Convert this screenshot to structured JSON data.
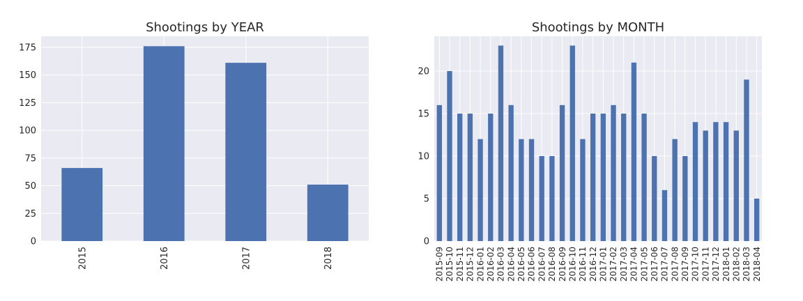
{
  "chart_data": [
    {
      "type": "bar",
      "title": "Shootings by YEAR",
      "xlabel": "",
      "ylabel": "",
      "categories": [
        "2015",
        "2016",
        "2017",
        "2018"
      ],
      "values": [
        66,
        176,
        161,
        51
      ],
      "ylim": [
        0,
        185
      ],
      "yticks": [
        0,
        25,
        50,
        75,
        100,
        125,
        150,
        175
      ],
      "grid": true,
      "bar_color": "#4c72b0"
    },
    {
      "type": "bar",
      "title": "Shootings by MONTH",
      "xlabel": "",
      "ylabel": "",
      "categories": [
        "2015-09",
        "2015-10",
        "2015-11",
        "2015-12",
        "2016-01",
        "2016-02",
        "2016-03",
        "2016-04",
        "2016-05",
        "2016-06",
        "2016-07",
        "2016-08",
        "2016-09",
        "2016-10",
        "2016-11",
        "2016-12",
        "2017-01",
        "2017-02",
        "2017-03",
        "2017-04",
        "2017-05",
        "2017-06",
        "2017-07",
        "2017-08",
        "2017-09",
        "2017-10",
        "2017-11",
        "2017-12",
        "2018-01",
        "2018-02",
        "2018-03",
        "2018-04"
      ],
      "values": [
        16,
        20,
        15,
        15,
        12,
        15,
        23,
        16,
        12,
        12,
        10,
        10,
        16,
        23,
        12,
        15,
        15,
        16,
        15,
        21,
        15,
        10,
        6,
        12,
        10,
        14,
        13,
        14,
        14,
        13,
        19,
        5
      ],
      "ylim": [
        0,
        24.1
      ],
      "yticks": [
        0,
        5,
        10,
        15,
        20
      ],
      "grid": true,
      "bar_color": "#4c72b0"
    }
  ]
}
